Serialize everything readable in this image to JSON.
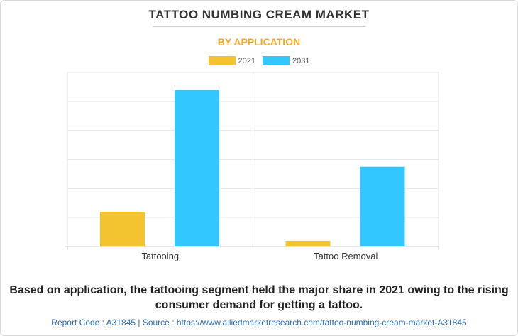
{
  "header": {
    "title": "TATTOO NUMBING CREAM MARKET",
    "subtitle": "BY APPLICATION"
  },
  "legend": [
    {
      "label": "2021",
      "color": "#f4c430"
    },
    {
      "label": "2031",
      "color": "#33c7ff"
    }
  ],
  "chart_data": {
    "type": "bar",
    "categories": [
      "Tattooing",
      "Tattoo Removal"
    ],
    "series": [
      {
        "name": "2021",
        "color": "#f4c430",
        "values": [
          1.2,
          0.2
        ]
      },
      {
        "name": "2031",
        "color": "#33c7ff",
        "values": [
          5.4,
          2.75
        ]
      }
    ],
    "ylim": [
      0,
      6
    ],
    "grid": true,
    "legend_position": "top-center"
  },
  "caption": "Based on application, the tattooing segment held the major share in 2021 owing to the rising consumer demand for getting a tattoo.",
  "footer": "Report Code : A31845  |  Source : https://www.alliedmarketresearch.com/tattoo-numbing-cream-market-A31845"
}
